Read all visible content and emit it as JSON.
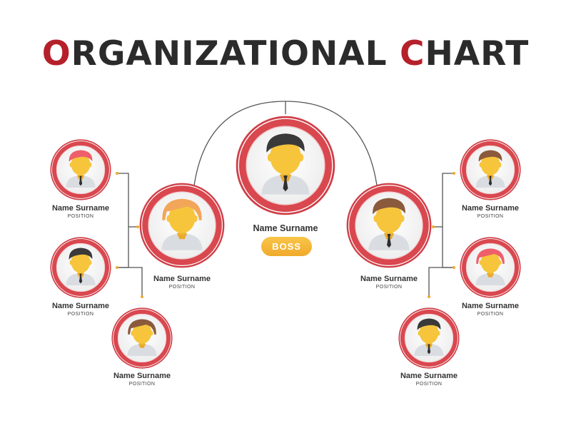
{
  "title": {
    "accent_1": "O",
    "rest_1": "RGANIZATIONAL ",
    "accent_2": "C",
    "rest_2": "HART"
  },
  "colors": {
    "accent": "#b5202b",
    "ring": "#d9474f",
    "skin": "#f6c53c",
    "badge": "#f4b233",
    "text": "#333333"
  },
  "badge": {
    "label": "BOSS"
  },
  "nodes": [
    {
      "id": "boss",
      "name": "Name Surname",
      "hair_color": "#3a3a3a",
      "style": "male"
    },
    {
      "id": "left-lead",
      "name": "Name Surname",
      "position": "POSITION",
      "hair_color": "#f2a65a",
      "style": "female"
    },
    {
      "id": "right-lead",
      "name": "Name Surname",
      "position": "POSITION",
      "hair_color": "#8b5a3c",
      "style": "male"
    },
    {
      "id": "left-member-1",
      "name": "Name Surname",
      "position": "POSITION",
      "hair_color": "#ee5f6b",
      "style": "male"
    },
    {
      "id": "left-member-2",
      "name": "Name Surname",
      "position": "POSITION",
      "hair_color": "#3a3a3a",
      "style": "male"
    },
    {
      "id": "left-member-3",
      "name": "Name Surname",
      "position": "POSITION",
      "hair_color": "#8b5a3c",
      "style": "female"
    },
    {
      "id": "right-member-1",
      "name": "Name Surname",
      "position": "POSITION",
      "hair_color": "#8b5a3c",
      "style": "male"
    },
    {
      "id": "right-member-2",
      "name": "Name Surname",
      "position": "POSITION",
      "hair_color": "#ee5f6b",
      "style": "female"
    },
    {
      "id": "right-member-3",
      "name": "Name Surname",
      "position": "POSITION",
      "hair_color": "#3a3a3a",
      "style": "male"
    }
  ]
}
